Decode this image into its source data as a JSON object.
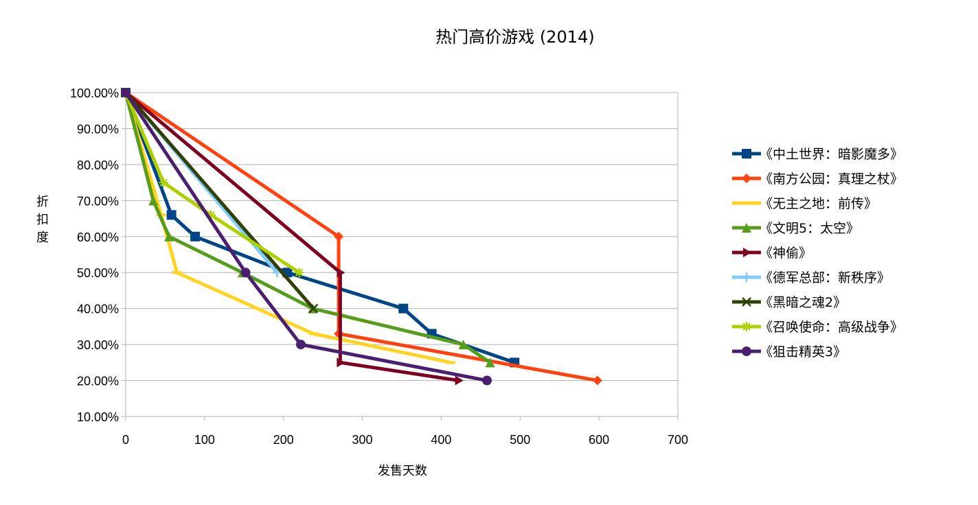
{
  "chart_data": {
    "type": "line",
    "title": "热门高价游戏 (2014)",
    "xlabel": "发售天数",
    "ylabel": "折扣度",
    "xlim": [
      0,
      700
    ],
    "ylim": [
      0.1,
      1.0
    ],
    "x_ticks": [
      0,
      100,
      200,
      300,
      400,
      500,
      600,
      700
    ],
    "x_tick_labels": [
      "0",
      "100",
      "200",
      "300",
      "400",
      "500",
      "600",
      "700"
    ],
    "y_ticks": [
      1.0,
      0.9,
      0.8,
      0.7,
      0.6,
      0.5,
      0.4,
      0.3,
      0.2,
      0.1
    ],
    "y_tick_labels": [
      "100.00%",
      "90.00%",
      "80.00%",
      "70.00%",
      "60.00%",
      "50.00%",
      "40.00%",
      "30.00%",
      "20.00%",
      "10.00%"
    ],
    "grid": "horizontal",
    "legend_position": "right",
    "series": [
      {
        "name": "《中土世界：暗影魔多》",
        "color": "#004586",
        "marker": "square",
        "points": [
          [
            0,
            1.0
          ],
          [
            58,
            0.66
          ],
          [
            88,
            0.6
          ],
          [
            205,
            0.5
          ],
          [
            352,
            0.4
          ],
          [
            388,
            0.33
          ],
          [
            493,
            0.25
          ]
        ]
      },
      {
        "name": "《南方公园：真理之杖》",
        "color": "#ff420e",
        "marker": "diamond",
        "points": [
          [
            0,
            1.0
          ],
          [
            270,
            0.6
          ],
          [
            270,
            0.33
          ],
          [
            598,
            0.2
          ]
        ]
      },
      {
        "name": "《无主之地：前传》",
        "color": "#ffd320",
        "marker": "dash",
        "points": [
          [
            0,
            1.0
          ],
          [
            45,
            0.66
          ],
          [
            65,
            0.5
          ],
          [
            238,
            0.33
          ],
          [
            412,
            0.25
          ]
        ]
      },
      {
        "name": "《文明5：太空》",
        "color": "#579d1c",
        "marker": "triangle",
        "points": [
          [
            0,
            1.0
          ],
          [
            35,
            0.7
          ],
          [
            55,
            0.6
          ],
          [
            148,
            0.5
          ],
          [
            237,
            0.4
          ],
          [
            428,
            0.3
          ],
          [
            462,
            0.25
          ]
        ]
      },
      {
        "name": "《神偷》",
        "color": "#7e0021",
        "marker": "arrow-right",
        "points": [
          [
            0,
            1.0
          ],
          [
            272,
            0.5
          ],
          [
            272,
            0.25
          ],
          [
            422,
            0.2
          ]
        ]
      },
      {
        "name": "《德军总部：新秩序》",
        "color": "#83caff",
        "marker": "plus",
        "points": [
          [
            0,
            1.0
          ],
          [
            192,
            0.5
          ]
        ]
      },
      {
        "name": "《黑暗之魂2》",
        "color": "#314004",
        "marker": "x",
        "points": [
          [
            0,
            1.0
          ],
          [
            238,
            0.4
          ]
        ]
      },
      {
        "name": "《召唤使命：高级战争》",
        "color": "#aecf00",
        "marker": "star",
        "points": [
          [
            0,
            1.0
          ],
          [
            48,
            0.75
          ],
          [
            108,
            0.66
          ],
          [
            220,
            0.5
          ]
        ]
      },
      {
        "name": "《狙击精英3》",
        "color": "#4b1f6f",
        "marker": "circle",
        "points": [
          [
            0,
            1.0
          ],
          [
            152,
            0.5
          ],
          [
            222,
            0.3
          ],
          [
            458,
            0.2
          ]
        ]
      }
    ]
  }
}
